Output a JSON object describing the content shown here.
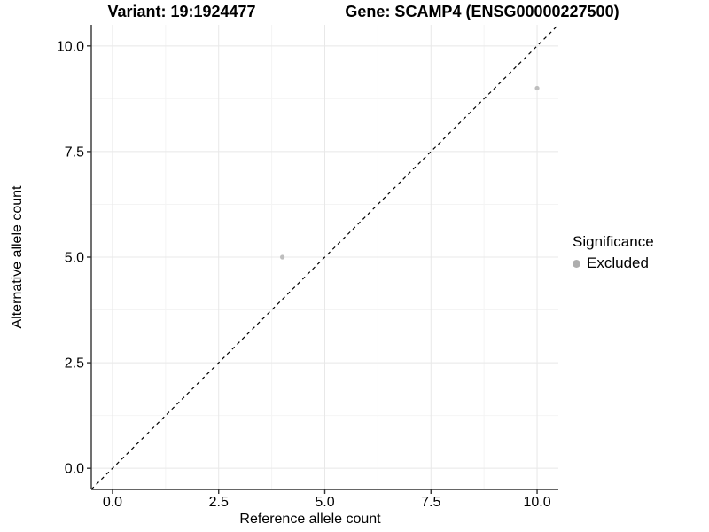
{
  "chart_data": {
    "type": "scatter",
    "titles": [
      {
        "text": "Variant: 19:1924477"
      },
      {
        "text": "Gene: SCAMP4 (ENSG00000227500)"
      }
    ],
    "xlabel": "Reference allele count",
    "ylabel": "Alternative allele count",
    "xlim": [
      -0.5,
      10.5
    ],
    "ylim": [
      -0.5,
      10.5
    ],
    "x_ticks": [
      0,
      2.5,
      5,
      7.5,
      10
    ],
    "x_tick_labels": [
      "0.0",
      "2.5",
      "5.0",
      "7.5",
      "10.0"
    ],
    "y_ticks": [
      0,
      2.5,
      5,
      7.5,
      10
    ],
    "y_tick_labels": [
      "0.0",
      "2.5",
      "5.0",
      "7.5",
      "10.0"
    ],
    "x_minor_ticks": [
      1.25,
      3.75,
      6.25,
      8.75
    ],
    "y_minor_ticks": [
      1.25,
      3.75,
      6.25,
      8.75
    ],
    "grid": "major+minor",
    "identity_line": {
      "style": "dashed",
      "color": "#000000",
      "from": [
        -0.5,
        -0.5
      ],
      "to": [
        10.5,
        10.5
      ]
    },
    "series": [
      {
        "name": "Excluded",
        "color": "#bebebe",
        "marker": "circle",
        "points": [
          [
            4,
            5
          ],
          [
            10,
            9
          ]
        ]
      }
    ],
    "legend": {
      "title": "Significance",
      "position": "right",
      "items": [
        {
          "label": "Excluded",
          "color": "#aeaeae"
        }
      ]
    }
  },
  "colors": {
    "background": "#ffffff",
    "grid_major": "#e8e8e8",
    "grid_minor": "#f4f4f4",
    "axis_line": "#333333",
    "tick_mark": "#333333",
    "text": "#000000"
  }
}
